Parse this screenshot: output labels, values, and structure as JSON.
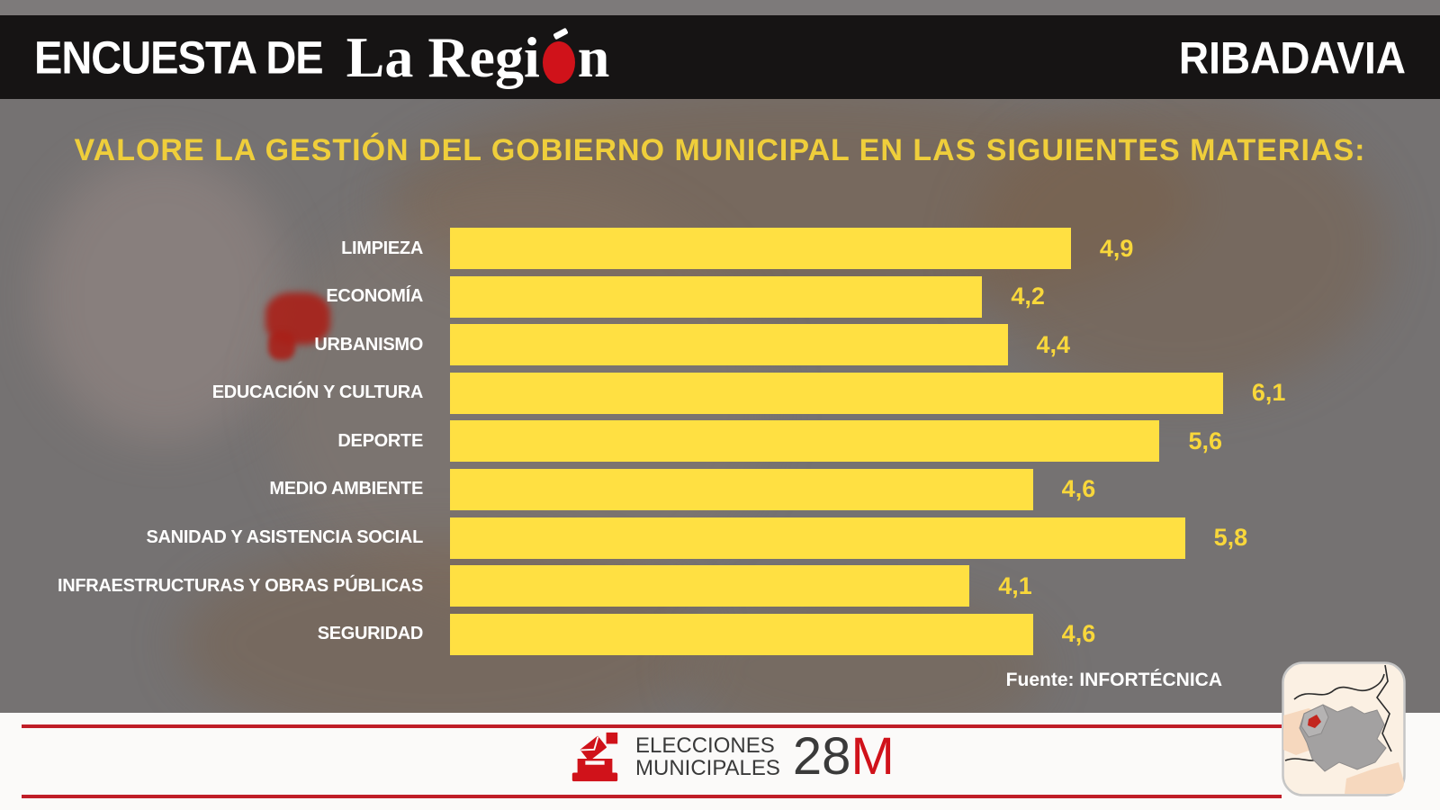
{
  "header": {
    "survey_label": "ENCUESTA DE",
    "brand_part1": "La Regi",
    "brand_part2": "n",
    "location": "RIBADAVIA"
  },
  "title": "VALORE LA GESTIÓN DEL GOBIERNO MUNICIPAL EN LAS SIGUIENTES MATERIAS:",
  "chart_data": {
    "type": "bar",
    "orientation": "horizontal",
    "title": "VALORE LA GESTIÓN DEL GOBIERNO MUNICIPAL EN LAS SIGUIENTES MATERIAS:",
    "categories": [
      "LIMPIEZA",
      "ECONOMÍA",
      "URBANISMO",
      "EDUCACIÓN Y CULTURA",
      "DEPORTE",
      "MEDIO AMBIENTE",
      "SANIDAD Y ASISTENCIA SOCIAL",
      "INFRAESTRUCTURAS Y OBRAS PÚBLICAS",
      "SEGURIDAD"
    ],
    "values": [
      4.9,
      4.2,
      4.4,
      6.1,
      5.6,
      4.6,
      5.8,
      4.1,
      4.6
    ],
    "value_labels": [
      "4,9",
      "4,2",
      "4,4",
      "6,1",
      "5,6",
      "4,6",
      "5,8",
      "4,1",
      "4,6"
    ],
    "xlim": [
      0,
      7
    ],
    "grid": false,
    "legend": false,
    "bar_color": "#FFE042",
    "value_label_color": "#F8D73B",
    "category_label_color": "#FFFFFF"
  },
  "source": "Fuente: INFORTÉCNICA",
  "footer": {
    "line1": "ELECCIONES",
    "line2": "MUNICIPALES",
    "date_number": "28",
    "date_letter": "M"
  },
  "colors": {
    "yellow_bar": "#FFE042",
    "yellow_title": "#EFCE3B",
    "yellow_value": "#F8D73B",
    "red_brand": "#D0121A",
    "red_line": "#C01E28",
    "header_bg": "#161414",
    "page_bg": "#757272"
  }
}
